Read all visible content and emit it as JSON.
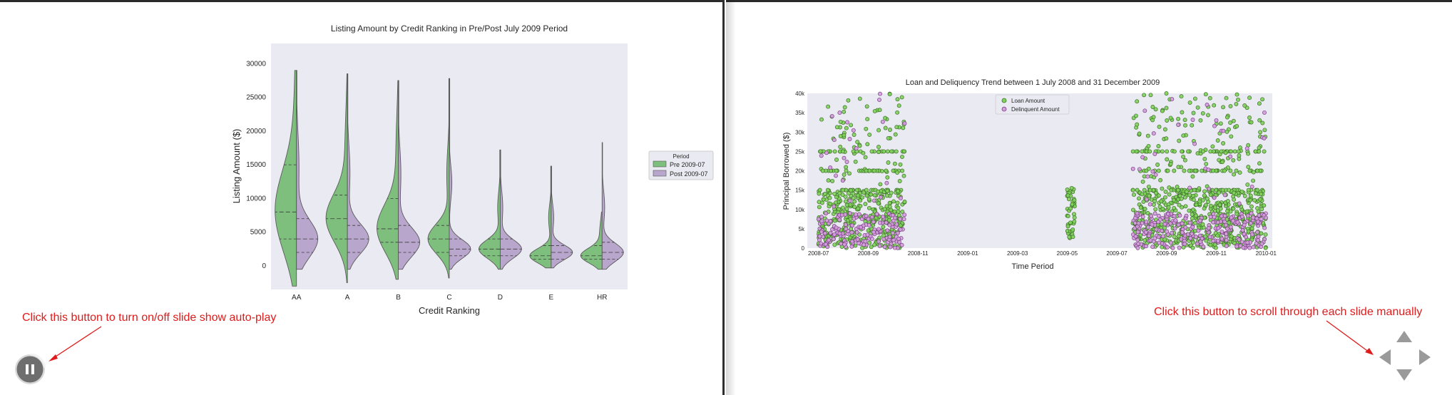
{
  "left_slide": {
    "chart_data": {
      "type": "violin",
      "title": "Listing Amount by Credit Ranking in Pre/Post July 2009 Period",
      "xlabel": "Credit Ranking",
      "ylabel": "Listing Amount ($)",
      "categories": [
        "AA",
        "A",
        "B",
        "C",
        "D",
        "E",
        "HR"
      ],
      "yticks": [
        0,
        5000,
        10000,
        15000,
        20000,
        25000,
        30000
      ],
      "ylim": [
        -3500,
        33000
      ],
      "legend": {
        "title": "Period",
        "placement": "right",
        "entries": [
          "Pre 2009-07",
          "Post 2009-07"
        ]
      },
      "series": [
        {
          "name": "Pre 2009-07",
          "color": "#7ebf7e",
          "min": [
            -3000,
            -2500,
            -2000,
            -1800,
            -500,
            -300,
            -500
          ],
          "max": [
            29000,
            28500,
            27500,
            27800,
            17200,
            14800,
            8000
          ],
          "q1": [
            4000,
            4000,
            3500,
            2000,
            1500,
            1000,
            1000
          ],
          "median": [
            8000,
            7000,
            5500,
            4000,
            2500,
            1500,
            1500
          ],
          "q3": [
            15000,
            10500,
            10000,
            6000,
            4000,
            3000,
            3000
          ]
        },
        {
          "name": "Post 2009-07",
          "color": "#b9a6cc",
          "min": [
            -500,
            -500,
            -500,
            -500,
            -500,
            -300,
            -500
          ],
          "max": [
            29000,
            28500,
            27500,
            27800,
            17200,
            14800,
            18300
          ],
          "q1": [
            2000,
            2000,
            2000,
            1500,
            1500,
            1000,
            1000
          ],
          "median": [
            4000,
            4000,
            3500,
            2500,
            2500,
            2000,
            2000
          ],
          "q3": [
            7000,
            6000,
            6000,
            4000,
            4000,
            3000,
            3500
          ]
        }
      ]
    },
    "annotation": "Click this button to turn on/off slide show auto-play"
  },
  "right_slide": {
    "chart_data": {
      "type": "scatter",
      "title": "Loan and Deliquency Trend between 1 July 2008 and 31 December 2009",
      "xlabel": "Time Period",
      "ylabel": "Principal Borrowed ($)",
      "xticks": [
        "2008-07",
        "2008-09",
        "2008-11",
        "2009-01",
        "2009-03",
        "2009-05",
        "2009-07",
        "2009-09",
        "2009-11",
        "2010-01"
      ],
      "yticks": [
        "0",
        "5k",
        "10k",
        "15k",
        "20k",
        "25k",
        "30k",
        "35k",
        "40k"
      ],
      "ylim": [
        0,
        40000
      ],
      "legend": {
        "placement": "top-center",
        "entries": [
          "Loan Amount",
          "Delinquent Amount"
        ]
      },
      "series": [
        {
          "name": "Loan Amount",
          "color": "#7ed35a",
          "active_ranges": [
            [
              "2008-07-01",
              "2008-10-15"
            ],
            [
              "2009-05-01",
              "2009-05-10"
            ],
            [
              "2009-07-20",
              "2009-12-31"
            ]
          ]
        },
        {
          "name": "Delinquent Amount",
          "color": "#d49ddb",
          "active_ranges": [
            [
              "2008-07-01",
              "2008-10-15"
            ],
            [
              "2009-07-20",
              "2009-12-31"
            ]
          ]
        }
      ]
    },
    "annotation": "Click this button to scroll through each slide manually"
  },
  "controls": {
    "pause_icon": "pause-icon",
    "nav_icons": [
      "arrow-up-icon",
      "arrow-down-icon",
      "arrow-left-icon",
      "arrow-right-icon"
    ],
    "annotation_color": "#e01b1b"
  }
}
